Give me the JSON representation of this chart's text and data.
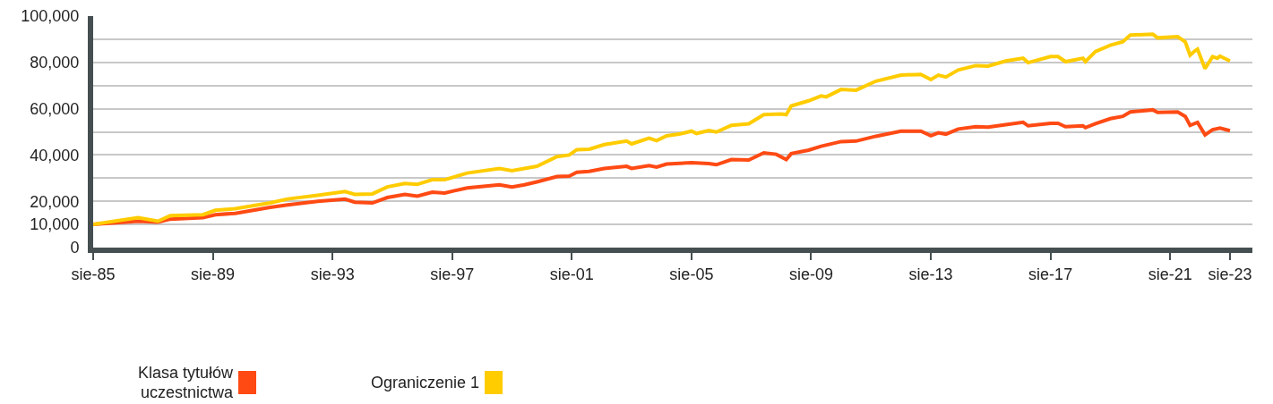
{
  "chart_data": {
    "type": "line",
    "xlim": [
      "1985-08",
      "2024-05"
    ],
    "xticks": [
      {
        "value": "1985-08",
        "label": "sie-85"
      },
      {
        "value": "1989-08",
        "label": "sie-89"
      },
      {
        "value": "1993-08",
        "label": "sie-93"
      },
      {
        "value": "1997-08",
        "label": "sie-97"
      },
      {
        "value": "2001-08",
        "label": "sie-01"
      },
      {
        "value": "2005-08",
        "label": "sie-05"
      },
      {
        "value": "2009-08",
        "label": "sie-09"
      },
      {
        "value": "2013-08",
        "label": "sie-13"
      },
      {
        "value": "2017-08",
        "label": "sie-17"
      },
      {
        "value": "2021-08",
        "label": "sie-21"
      },
      {
        "value": "2023-08",
        "label": "sie-23"
      }
    ],
    "ylim": [
      0,
      100000
    ],
    "yticks": [
      {
        "value": 0,
        "label": "0"
      },
      {
        "value": 10000,
        "label": "10,000"
      },
      {
        "value": 20000,
        "label": "20,000"
      },
      {
        "value": 30000,
        "label": null
      },
      {
        "value": 40000,
        "label": "40,000"
      },
      {
        "value": 50000,
        "label": null
      },
      {
        "value": 60000,
        "label": "60,000"
      },
      {
        "value": 70000,
        "label": null
      },
      {
        "value": 80000,
        "label": "80,000"
      },
      {
        "value": 90000,
        "label": null
      },
      {
        "value": 100000,
        "label": "100,000"
      }
    ],
    "grid": "y",
    "legend": "bottom",
    "series": [
      {
        "name": "Klasa tytułów uczestnictwa",
        "color": "#ff4a14",
        "x": [
          "1985-08",
          "1987-02",
          "1987-10",
          "1988-03",
          "1989-04",
          "1989-09",
          "1990-05",
          "1991-07",
          "1992-02",
          "1993-02",
          "1994-01",
          "1994-05",
          "1994-12",
          "1995-06",
          "1996-01",
          "1996-06",
          "1996-12",
          "1997-05",
          "1998-02",
          "1999-03",
          "1999-08",
          "2000-01",
          "2000-06",
          "2001-02",
          "2001-07",
          "2001-10",
          "2002-03",
          "2002-09",
          "2003-06",
          "2003-08",
          "2004-03",
          "2004-06",
          "2004-10",
          "2005-08",
          "2006-03",
          "2006-06",
          "2006-12",
          "2007-07",
          "2008-01",
          "2008-06",
          "2008-10",
          "2008-12",
          "2009-07",
          "2009-12",
          "2010-08",
          "2011-02",
          "2011-10",
          "2012-08",
          "2013-04",
          "2013-08",
          "2013-11",
          "2014-02",
          "2014-07",
          "2015-02",
          "2015-07",
          "2016-02",
          "2016-09",
          "2016-11",
          "2017-08",
          "2017-11",
          "2018-02",
          "2018-09",
          "2018-10",
          "2019-02",
          "2019-08",
          "2020-01",
          "2020-04",
          "2021-01",
          "2021-03",
          "2021-11",
          "2022-02",
          "2022-04",
          "2022-07",
          "2022-10",
          "2023-01",
          "2023-04",
          "2023-08"
        ],
        "values": [
          10000,
          11400,
          11000,
          12300,
          12900,
          14200,
          14800,
          17400,
          18400,
          20000,
          20900,
          19600,
          19300,
          21600,
          23000,
          22200,
          23900,
          23600,
          25800,
          27100,
          26200,
          27100,
          28400,
          30700,
          30900,
          32500,
          32900,
          34200,
          35100,
          34200,
          35400,
          34800,
          36100,
          36700,
          36300,
          35800,
          38000,
          37800,
          40900,
          40300,
          38000,
          40600,
          42100,
          43800,
          45800,
          46000,
          48100,
          50300,
          50300,
          48300,
          49600,
          49000,
          51200,
          52200,
          52000,
          53100,
          54100,
          52600,
          53700,
          53700,
          52200,
          52600,
          51800,
          53500,
          55700,
          56700,
          58600,
          59500,
          58400,
          58600,
          56700,
          52800,
          54100,
          48700,
          50900,
          51600,
          50500
        ]
      },
      {
        "name": "Ograniczenie 1",
        "color": "#ffcc00",
        "x": [
          "1985-08",
          "1987-02",
          "1987-10",
          "1988-03",
          "1989-04",
          "1989-09",
          "1990-05",
          "1991-07",
          "1992-02",
          "1993-02",
          "1994-01",
          "1994-05",
          "1994-12",
          "1995-06",
          "1996-01",
          "1996-06",
          "1996-12",
          "1997-05",
          "1998-02",
          "1999-03",
          "1999-08",
          "2000-01",
          "2000-06",
          "2001-02",
          "2001-07",
          "2001-10",
          "2002-03",
          "2002-09",
          "2003-06",
          "2003-08",
          "2004-03",
          "2004-06",
          "2004-10",
          "2005-03",
          "2005-08",
          "2005-10",
          "2006-03",
          "2006-06",
          "2006-12",
          "2007-07",
          "2008-01",
          "2008-08",
          "2008-10",
          "2008-12",
          "2009-07",
          "2009-12",
          "2010-02",
          "2010-08",
          "2011-02",
          "2011-10",
          "2012-08",
          "2013-04",
          "2013-08",
          "2013-11",
          "2014-02",
          "2014-07",
          "2015-02",
          "2015-07",
          "2016-02",
          "2016-09",
          "2016-11",
          "2017-08",
          "2017-11",
          "2018-02",
          "2018-09",
          "2018-10",
          "2019-02",
          "2019-08",
          "2020-01",
          "2020-04",
          "2021-01",
          "2021-03",
          "2021-11",
          "2022-02",
          "2022-04",
          "2022-06",
          "2022-07",
          "2022-10",
          "2023-01",
          "2023-03",
          "2023-04",
          "2023-08"
        ],
        "values": [
          10000,
          12900,
          11400,
          13800,
          14200,
          16100,
          16800,
          19300,
          21000,
          22600,
          24200,
          23000,
          23200,
          26200,
          27700,
          27300,
          29300,
          29300,
          32200,
          34200,
          33200,
          34200,
          35100,
          39300,
          40000,
          42300,
          42500,
          44500,
          46000,
          44800,
          47300,
          46200,
          48300,
          49000,
          50300,
          49300,
          50600,
          49900,
          52800,
          53500,
          57400,
          57700,
          57400,
          61200,
          63400,
          65500,
          65100,
          68300,
          68000,
          71900,
          74500,
          74800,
          72600,
          74500,
          73700,
          76700,
          78600,
          78400,
          80600,
          81800,
          79900,
          82500,
          82500,
          80300,
          81800,
          80300,
          84700,
          87400,
          88900,
          91800,
          92200,
          90600,
          91100,
          88900,
          83100,
          85000,
          85700,
          77300,
          82500,
          81800,
          82700,
          80600
        ]
      }
    ]
  }
}
